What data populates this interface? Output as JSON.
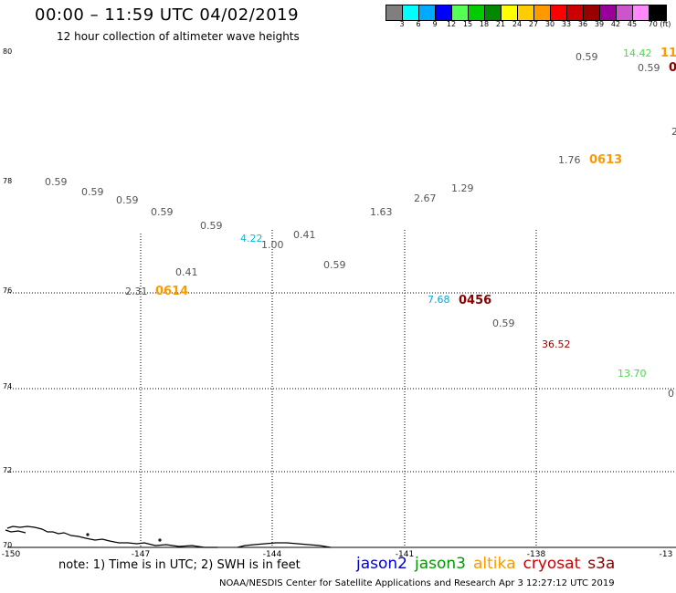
{
  "header": {
    "title": "00:00 – 11:59 UTC 04/02/2019",
    "subtitle": "12 hour collection of altimeter wave heights"
  },
  "colorbar": {
    "colors": [
      "#7f7f7f",
      "#00ffff",
      "#00aaff",
      "#0000ff",
      "#55ff55",
      "#00cc00",
      "#008800",
      "#ffff00",
      "#ffcc00",
      "#ff9900",
      "#ff0000",
      "#cc0000",
      "#990000",
      "#990099",
      "#cc55cc",
      "#ff88ff",
      "#000000"
    ],
    "labels": [
      "3",
      "6",
      "9",
      "12",
      "15",
      "18",
      "21",
      "24",
      "27",
      "30",
      "33",
      "36",
      "39",
      "42",
      "45",
      "70 (ft)"
    ]
  },
  "axes": {
    "lat_labels": [
      "80",
      "78",
      "76",
      "74",
      "72",
      "70"
    ],
    "lon_labels": [
      "-150",
      "-147",
      "-144",
      "-141",
      "-138",
      "-13"
    ]
  },
  "observations": [
    {
      "text": "0.59",
      "color": "#555555"
    },
    {
      "text": "0.59",
      "color": "#555555"
    },
    {
      "text": "0.59",
      "color": "#555555"
    },
    {
      "text": "0.59",
      "color": "#555555"
    },
    {
      "text": "0.59",
      "color": "#555555"
    },
    {
      "text": "4.22",
      "color": "#00bbdd"
    },
    {
      "text": "1.00",
      "color": "#555555"
    },
    {
      "text": "0.41",
      "color": "#555555"
    },
    {
      "text": "0.59",
      "color": "#555555"
    },
    {
      "text": "0.41",
      "color": "#555555"
    },
    {
      "text": "2.31",
      "color": "#555555"
    },
    {
      "text": "1.63",
      "color": "#555555"
    },
    {
      "text": "2.67",
      "color": "#555555"
    },
    {
      "text": "1.29",
      "color": "#555555"
    },
    {
      "text": "1.76",
      "color": "#555555"
    },
    {
      "text": "0.59",
      "color": "#555555"
    },
    {
      "text": "14.42",
      "color": "#44dd44"
    },
    {
      "text": "0.59",
      "color": "#555555"
    },
    {
      "text": "7.68",
      "color": "#00aadd"
    },
    {
      "text": "0.59",
      "color": "#555555"
    },
    {
      "text": "36.52",
      "color": "#990000"
    },
    {
      "text": "13.70",
      "color": "#44dd44"
    },
    {
      "text": "0",
      "color": "#555555"
    },
    {
      "text": "2",
      "color": "#555555"
    }
  ],
  "time_labels": [
    {
      "text": "0614",
      "color": "#ff9900"
    },
    {
      "text": "0613",
      "color": "#ff9900"
    },
    {
      "text": "0456",
      "color": "#880000"
    },
    {
      "text": "11",
      "color": "#ff9900"
    },
    {
      "text": "0",
      "color": "#880000"
    }
  ],
  "note": "note: 1) Time is in UTC; 2) SWH is in feet",
  "legend": [
    {
      "name": "jason2",
      "color": "#0000cc"
    },
    {
      "name": "jason3",
      "color": "#009900"
    },
    {
      "name": "altika",
      "color": "#ff9900"
    },
    {
      "name": "cryosat",
      "color": "#cc0000"
    },
    {
      "name": "s3a",
      "color": "#880000"
    }
  ],
  "footer": "NOAA/NESDIS Center for Satellite Applications and Research   Apr  3 12:27:12 UTC 2019"
}
